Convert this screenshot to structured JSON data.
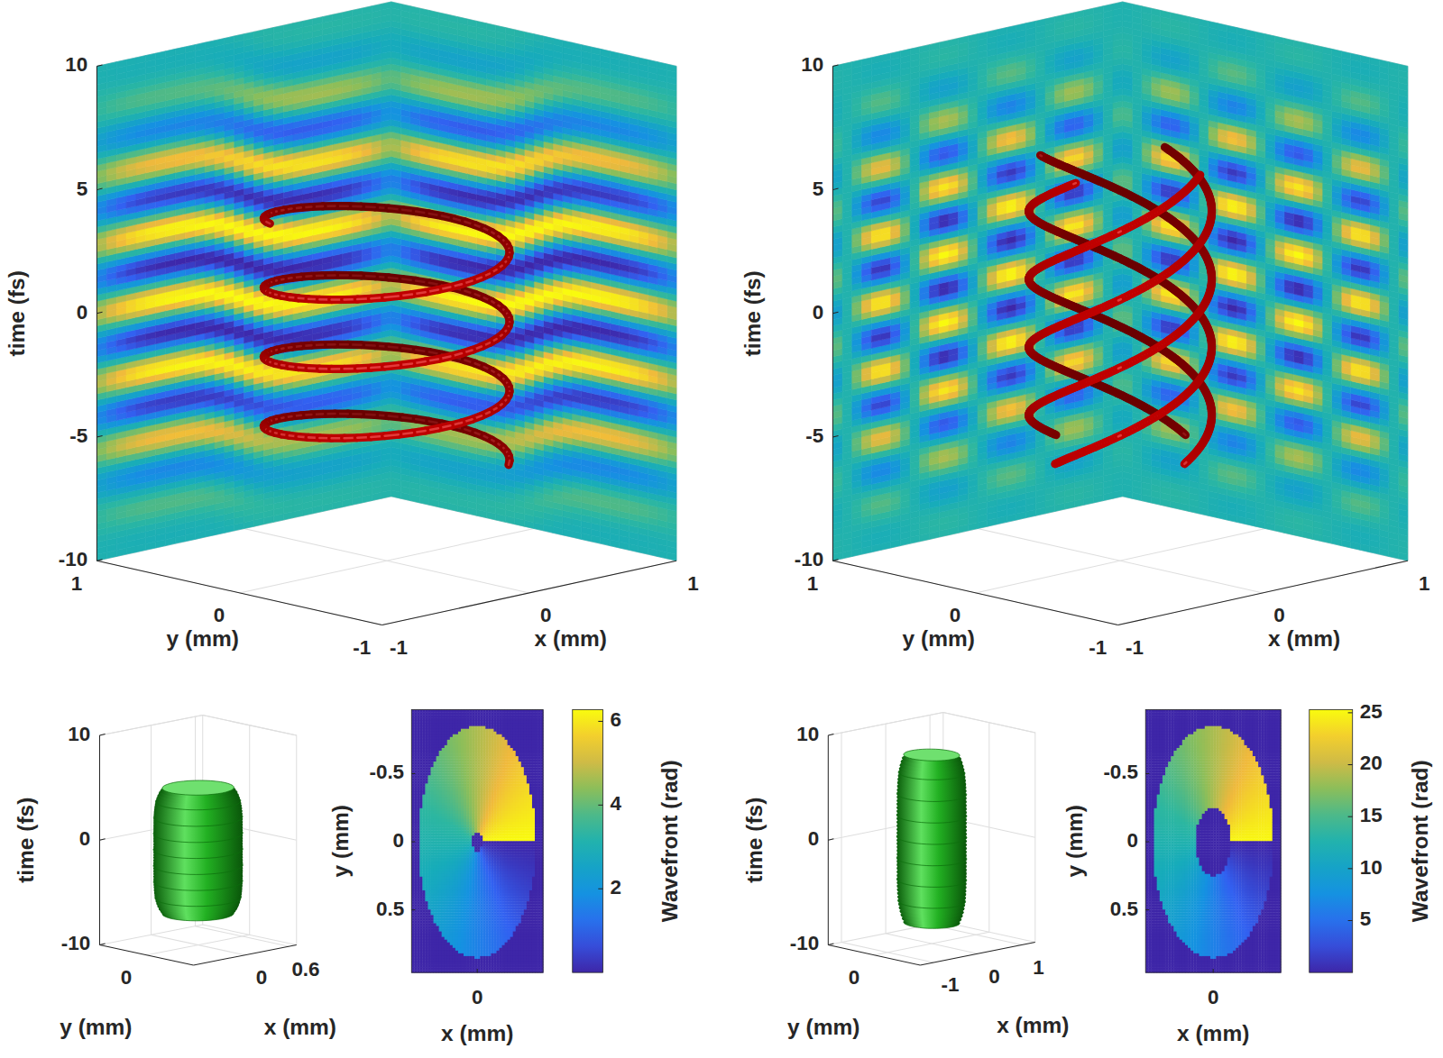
{
  "chart_data": [
    {
      "type": "helix_isosurface",
      "zlabel": "time (fs)",
      "ylabel": "y (mm)",
      "xlabel": "x (mm)",
      "zlim": [
        -10,
        10
      ],
      "zticks": [
        -10,
        -5,
        0,
        5,
        10
      ],
      "ylim": [
        -1,
        1
      ],
      "yticks": [
        -1,
        0,
        1
      ],
      "xlim": [
        -1,
        1
      ],
      "xticks": [
        -1,
        0,
        1
      ],
      "color": "#c00000",
      "strands": 1,
      "radius": 0.6,
      "pitch": 2.8,
      "time_range": [
        -6,
        4
      ]
    },
    {
      "type": "helix_isosurface",
      "zlabel": "time (fs)",
      "ylabel": "y (mm)",
      "xlabel": "x (mm)",
      "zlim": [
        -10,
        10
      ],
      "zticks": [
        -10,
        -5,
        0,
        5,
        10
      ],
      "ylim": [
        -1,
        1
      ],
      "yticks": [
        -1,
        0,
        1
      ],
      "xlim": [
        -1,
        1
      ],
      "xticks": [
        -1,
        0,
        1
      ],
      "color": "#c00000",
      "strands": 4,
      "radius": 0.45,
      "pitch": 11,
      "time_range": [
        -5.5,
        6
      ]
    },
    {
      "type": "isosurface_3d",
      "zlabel": "time (fs)",
      "ylabel": "y (mm)",
      "xlabel": "x (mm)",
      "zlim": [
        -10,
        10
      ],
      "zticks": [
        -10,
        0,
        10
      ],
      "ylim": [
        -0.7,
        0.7
      ],
      "yticks": [
        0
      ],
      "xlim": [
        -0.7,
        0.7
      ],
      "xticks": [
        0,
        0.6
      ],
      "color": "#22b022",
      "radius": 0.45,
      "time_range": [
        -7,
        5
      ]
    },
    {
      "type": "heatmap",
      "xlabel": "x (mm)",
      "ylabel": "y (mm)",
      "xlim": [
        -0.95,
        0.95
      ],
      "xticks": [
        0
      ],
      "ylim": [
        -0.97,
        0.96
      ],
      "yticks": [
        -0.5,
        0,
        0.5
      ],
      "colorbar": {
        "label": "Wavefront (rad)",
        "range": [
          0,
          6.28
        ],
        "ticks": [
          2,
          4,
          6
        ]
      },
      "charge": 1,
      "inner_radius": 0.07,
      "outer_radius": 0.85
    },
    {
      "type": "isosurface_3d",
      "zlabel": "time (fs)",
      "ylabel": "y (mm)",
      "xlabel": "x (mm)",
      "zlim": [
        -10,
        10
      ],
      "zticks": [
        -10,
        0,
        10
      ],
      "ylim": [
        -1,
        1
      ],
      "yticks": [
        0
      ],
      "xlim": [
        -1.3,
        1.3
      ],
      "xticks": [
        -1,
        0,
        1
      ],
      "color": "#22b022",
      "radius": 0.55,
      "time_range": [
        -8,
        8
      ]
    },
    {
      "type": "heatmap",
      "xlabel": "x (mm)",
      "ylabel": "y (mm)",
      "xlim": [
        -0.95,
        0.95
      ],
      "xticks": [
        0
      ],
      "ylim": [
        -0.97,
        0.96
      ],
      "yticks": [
        -0.5,
        0,
        0.5
      ],
      "colorbar": {
        "label": "Wavefront (rad)",
        "range": [
          0,
          25.3
        ],
        "ticks": [
          5,
          10,
          15,
          20,
          25
        ]
      },
      "charge": 4,
      "inner_radius": 0.25,
      "outer_radius": 0.85
    }
  ]
}
